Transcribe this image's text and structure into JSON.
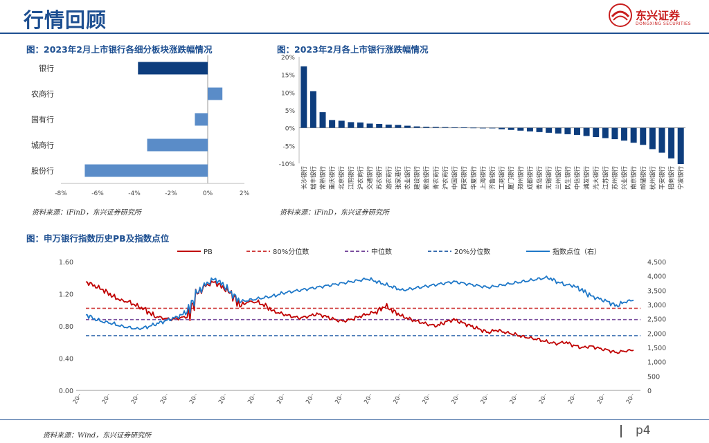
{
  "header": {
    "title": "行情回顾",
    "logo_name": "东兴证券",
    "logo_sub": "DONGXING SECURITIES"
  },
  "colors": {
    "navy": "#1d4f91",
    "bar_dark": "#0d3d7d",
    "bar_light": "#5a8cc8",
    "pb_red": "#c00000",
    "index_blue": "#1f78c8",
    "p20_blue": "#3a6fb0",
    "median_purple": "#7a4e9e"
  },
  "footer": {
    "page": "p4"
  },
  "chart_data": [
    {
      "type": "bar",
      "orientation": "horizontal",
      "title": "图：2023年2月上市银行各细分板块涨跌幅情况",
      "source": "资料来源：iFinD，东兴证券研究所",
      "categories": [
        "银行",
        "农商行",
        "国有行",
        "城商行",
        "股份行"
      ],
      "values": [
        -3.8,
        0.8,
        -0.7,
        -3.3,
        -6.7
      ],
      "xlim": [
        -8,
        2
      ],
      "xticks": [
        "-8%",
        "-6%",
        "-4%",
        "-2%",
        "0%",
        "2%"
      ],
      "xtick_values": [
        -8,
        -6,
        -4,
        -2,
        0,
        2
      ]
    },
    {
      "type": "bar",
      "title": "图：2023年2月各上市银行涨跌幅情况",
      "source": "资料来源：iFinD，东兴证券研究所",
      "ylim": [
        -10,
        20
      ],
      "yticks": [
        "20%",
        "15%",
        "10%",
        "5%",
        "0%",
        "-5%",
        "-10%"
      ],
      "ytick_values": [
        20,
        15,
        10,
        5,
        0,
        -5,
        -10
      ],
      "categories": [
        "长沙银行",
        "瑞丰银行",
        "常熟银行",
        "重庆银行",
        "北京银行",
        "江阴银行",
        "沪农商行",
        "交通银行",
        "苏农银行",
        "渝农商行",
        "张家港行",
        "农业银行",
        "建设银行",
        "紫金银行",
        "青农商行",
        "沪农商行",
        "中国银行",
        "西安银行",
        "华夏银行",
        "上海银行",
        "齐鲁银行",
        "工商银行",
        "厦门银行",
        "郑州银行",
        "成都银行",
        "青岛银行",
        "无锡银行",
        "兰州银行",
        "民生银行",
        "中信银行",
        "浦发银行",
        "光大银行",
        "江苏银行",
        "苏州银行",
        "兴业银行",
        "南京银行",
        "邮储银行",
        "杭州银行",
        "平安银行",
        "招商银行",
        "宁波银行"
      ],
      "values": [
        17.3,
        10.3,
        4.4,
        2.2,
        2.0,
        1.6,
        1.5,
        1.2,
        1.1,
        0.9,
        0.8,
        0.6,
        0.4,
        0.3,
        0.25,
        0.2,
        0.15,
        0.1,
        0.05,
        0.0,
        -0.1,
        -0.4,
        -0.6,
        -0.8,
        -1.0,
        -1.2,
        -1.4,
        -1.6,
        -1.8,
        -2.0,
        -2.3,
        -2.6,
        -2.9,
        -3.2,
        -3.6,
        -4.2,
        -4.8,
        -6.0,
        -7.0,
        -8.6,
        -10.2
      ]
    },
    {
      "type": "line",
      "title": "图：申万银行指数历史PB及指数点位",
      "source": "资料来源：Wind，东兴证券研究所",
      "ylim_left": [
        0,
        1.6
      ],
      "yticks_left": [
        "1.60",
        "1.20",
        "0.80",
        "0.40",
        "0.00"
      ],
      "ytick_values_left": [
        1.6,
        1.2,
        0.8,
        0.4,
        0.0
      ],
      "ylim_right": [
        0,
        4500
      ],
      "yticks_right": [
        "4,500",
        "4,000",
        "3,500",
        "3,000",
        "2,500",
        "2,000",
        "1,500",
        "1,000",
        "500",
        "0"
      ],
      "ytick_values_right": [
        4500,
        4000,
        3500,
        3000,
        2500,
        2000,
        1500,
        1000,
        500,
        0
      ],
      "xticks": [
        "20··",
        "20··",
        "20··",
        "20··",
        "20··",
        "20··",
        "20··",
        "20··",
        "20··",
        "20··",
        "20··",
        "20··",
        "20··",
        "20··",
        "20··",
        "20··",
        "20··",
        "20··",
        "20··",
        "20··"
      ],
      "legend": [
        {
          "name": "PB",
          "style": "solid",
          "color": "#c00000"
        },
        {
          "name": "80%分位数",
          "style": "dashed",
          "color": "#d04040"
        },
        {
          "name": "中位数",
          "style": "dashed",
          "color": "#7a4e9e"
        },
        {
          "name": "20%分位数",
          "style": "dashed",
          "color": "#3a6fb0"
        },
        {
          "name": "指数点位（右）",
          "style": "solid",
          "color": "#1f78c8"
        }
      ],
      "legend_position": "top",
      "reference_lines": {
        "p80": 1.02,
        "median": 0.88,
        "p20": 0.68
      },
      "pb_series": [
        1.35,
        1.3,
        1.25,
        1.18,
        1.12,
        1.1,
        1.05,
        1.0,
        0.92,
        0.9,
        0.88,
        0.9,
        0.92,
        1.2,
        1.3,
        1.35,
        1.28,
        1.2,
        1.05,
        1.1,
        1.1,
        1.05,
        0.98,
        0.95,
        0.92,
        0.9,
        0.92,
        0.95,
        0.92,
        0.88,
        0.86,
        0.88,
        0.92,
        0.95,
        0.98,
        1.05,
        0.98,
        0.92,
        0.88,
        0.85,
        0.82,
        0.8,
        0.85,
        0.88,
        0.84,
        0.8,
        0.76,
        0.72,
        0.75,
        0.72,
        0.7,
        0.67,
        0.65,
        0.63,
        0.6,
        0.58,
        0.6,
        0.56,
        0.53,
        0.55,
        0.52,
        0.5,
        0.47,
        0.49,
        0.5
      ],
      "index_series": [
        2650,
        2500,
        2400,
        2350,
        2250,
        2200,
        2150,
        2200,
        2300,
        2400,
        2500,
        2600,
        2800,
        3400,
        3700,
        3900,
        3700,
        3400,
        3100,
        3150,
        3200,
        3250,
        3300,
        3400,
        3450,
        3500,
        3550,
        3600,
        3650,
        3700,
        3750,
        3800,
        3850,
        3900,
        3800,
        3700,
        3600,
        3500,
        3550,
        3600,
        3650,
        3700,
        3750,
        3800,
        3750,
        3700,
        3650,
        3600,
        3650,
        3700,
        3750,
        3800,
        3850,
        3900,
        3950,
        3800,
        3700,
        3650,
        3500,
        3300,
        3200,
        3100,
        2950,
        3100,
        3150
      ]
    }
  ]
}
